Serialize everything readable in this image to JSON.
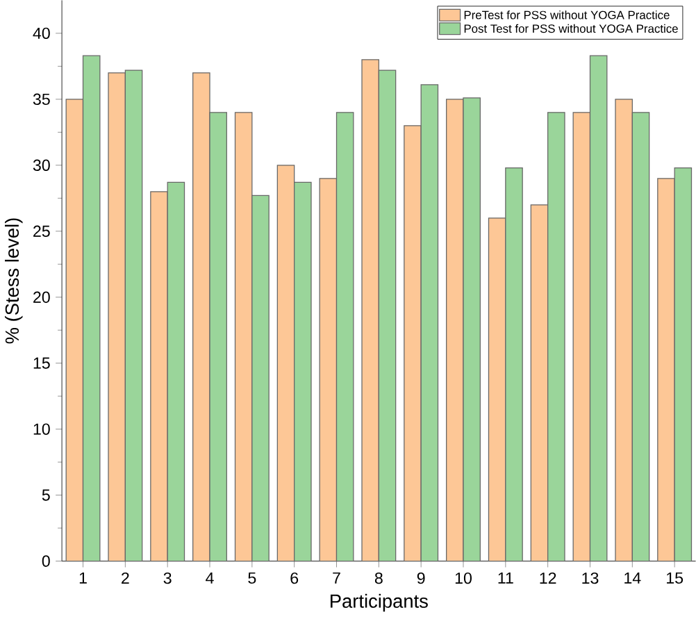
{
  "chart_data": {
    "type": "bar",
    "xlabel": "Participants",
    "ylabel": "% (Stess level)",
    "categories": [
      "1",
      "2",
      "3",
      "4",
      "5",
      "6",
      "7",
      "8",
      "9",
      "10",
      "11",
      "12",
      "13",
      "14",
      "15"
    ],
    "series": [
      {
        "name": "PreTest for PSS without YOGA Practice",
        "color": "#fdc796",
        "values": [
          35,
          37,
          28,
          37,
          34,
          30,
          29,
          38,
          33,
          35,
          26,
          27,
          34,
          35,
          29
        ]
      },
      {
        "name": "Post Test for PSS without YOGA Practice",
        "color": "#9ad59a",
        "values": [
          38.3,
          37.2,
          28.7,
          34,
          27.7,
          28.7,
          34,
          37.2,
          36.1,
          35.1,
          29.8,
          34,
          38.3,
          34,
          29.8
        ]
      }
    ],
    "ylim": [
      0,
      42.5
    ],
    "yticks": [
      0,
      5,
      10,
      15,
      20,
      25,
      30,
      35,
      40
    ],
    "legend": "top right"
  }
}
